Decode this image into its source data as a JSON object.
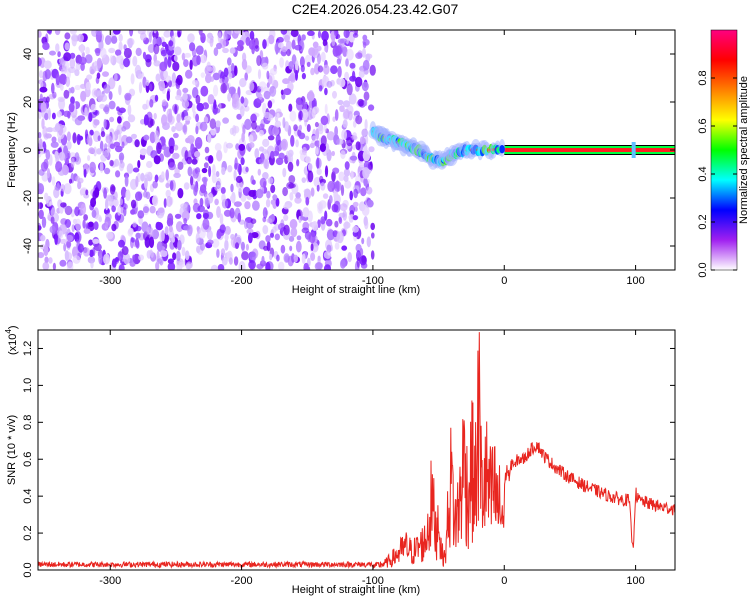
{
  "figure_title": "C2E4.2026.054.23.42.G07",
  "chart_data": [
    {
      "type": "heatmap",
      "xlabel": "Height of straight line (km)",
      "ylabel": "Frequency (Hz)",
      "xlim": [
        -355,
        130
      ],
      "ylim": [
        -50,
        50
      ],
      "x_ticks": [
        -300,
        -200,
        -100,
        0,
        100
      ],
      "y_ticks": [
        -40,
        -20,
        0,
        20,
        40
      ],
      "grid": false,
      "noise_region": {
        "x": [
          -355,
          -100
        ],
        "y": [
          -50,
          50
        ]
      },
      "signal_track": [
        {
          "x": -100,
          "y": 8
        },
        {
          "x": -95,
          "y": 6
        },
        {
          "x": -90,
          "y": 5
        },
        {
          "x": -85,
          "y": 4
        },
        {
          "x": -80,
          "y": 3
        },
        {
          "x": -75,
          "y": 2
        },
        {
          "x": -70,
          "y": 1
        },
        {
          "x": -65,
          "y": 0
        },
        {
          "x": -60,
          "y": -2
        },
        {
          "x": -55,
          "y": -4
        },
        {
          "x": -50,
          "y": -5
        },
        {
          "x": -45,
          "y": -4
        },
        {
          "x": -40,
          "y": -2
        },
        {
          "x": -35,
          "y": -1
        },
        {
          "x": -30,
          "y": 0
        },
        {
          "x": -20,
          "y": 0
        },
        {
          "x": -10,
          "y": 0
        },
        {
          "x": 0,
          "y": 1
        },
        {
          "x": 130,
          "y": 0
        }
      ],
      "steady_tone": {
        "x_start": 0,
        "x_end": 130,
        "y": 0
      },
      "colorbar": {
        "label": "Normalized spectral amplitude",
        "range": [
          0,
          1
        ],
        "ticks": [
          0.0,
          0.2,
          0.4,
          0.6,
          0.8
        ],
        "colors": [
          "#ffffff",
          "#a020f0",
          "#0000ff",
          "#00ffff",
          "#00ff00",
          "#ffff00",
          "#ff8000",
          "#ff0000",
          "#ff0080"
        ]
      }
    },
    {
      "type": "line",
      "xlabel": "Height of straight line (km)",
      "ylabel": "SNR (10 * v/v)",
      "y_scale_label": "(x10",
      "y_scale_exponent": "4",
      "y_scale_close": ")",
      "xlim": [
        -355,
        130
      ],
      "ylim": [
        0,
        1.3
      ],
      "x_ticks": [
        -300,
        -200,
        -100,
        0,
        100
      ],
      "y_ticks": [
        0.0,
        0.2,
        0.4,
        0.6,
        0.8,
        1.0,
        1.2
      ],
      "grid": false,
      "line_color": "#e8251f",
      "series": [
        {
          "x": [
            -355,
            -340,
            -320,
            -300,
            -280,
            -260,
            -240,
            -220,
            -200,
            -180,
            -160,
            -140,
            -120,
            -100,
            -90,
            -85,
            -80,
            -75,
            -70,
            -65,
            -60,
            -55,
            -52,
            -50,
            -48,
            -45,
            -42,
            -40,
            -38,
            -35,
            -32,
            -30,
            -28,
            -25,
            -22,
            -20,
            -19,
            -18,
            -16,
            -14,
            -12,
            -10,
            -8,
            -6,
            -4,
            -2,
            0,
            2,
            4,
            6,
            8,
            10,
            15,
            20,
            25,
            30,
            40,
            50,
            60,
            70,
            80,
            90,
            95,
            98,
            100,
            102,
            110,
            120,
            130
          ],
          "values": [
            0.03,
            0.03,
            0.03,
            0.03,
            0.03,
            0.03,
            0.03,
            0.03,
            0.03,
            0.03,
            0.03,
            0.03,
            0.03,
            0.03,
            0.06,
            0.1,
            0.15,
            0.2,
            0.15,
            0.2,
            0.25,
            0.6,
            0.3,
            0.5,
            0.15,
            0.1,
            0.6,
            0.8,
            0.4,
            0.5,
            0.8,
            1.0,
            0.6,
            0.9,
            0.7,
            1.2,
            1.3,
            0.8,
            0.7,
            0.8,
            0.7,
            0.6,
            0.7,
            0.6,
            0.55,
            0.5,
            0.45,
            0.55,
            0.5,
            0.6,
            0.55,
            0.6,
            0.6,
            0.65,
            0.68,
            0.62,
            0.55,
            0.5,
            0.46,
            0.43,
            0.4,
            0.38,
            0.38,
            0.1,
            0.42,
            0.38,
            0.36,
            0.34,
            0.33
          ]
        }
      ]
    }
  ]
}
